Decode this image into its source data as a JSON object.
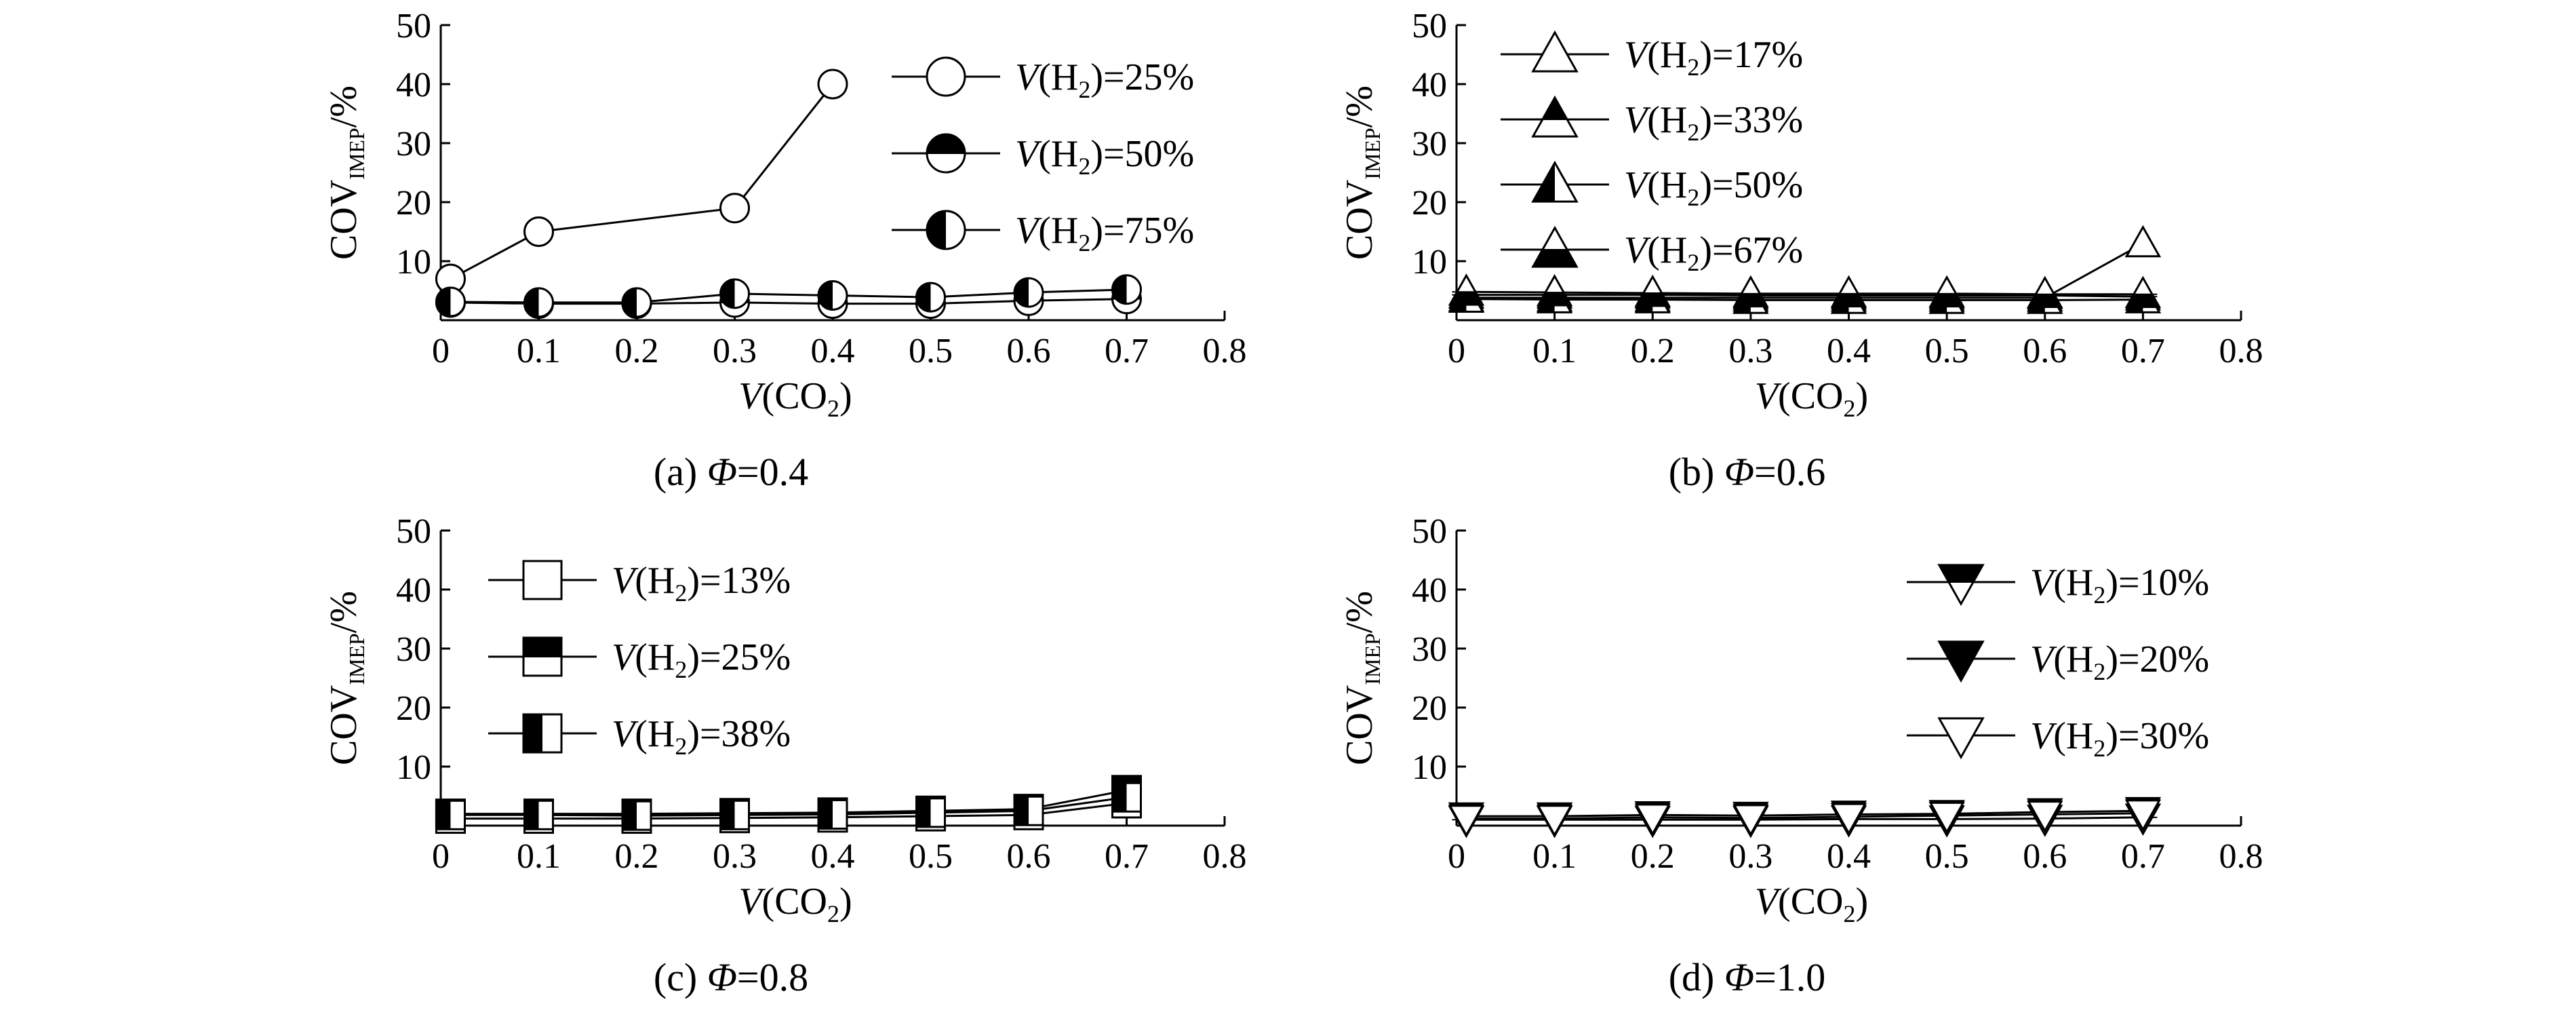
{
  "chart_data": [
    {
      "type": "line",
      "caption_prefix": "(a) ",
      "caption_symbol": "Φ",
      "caption_value": "=0.4",
      "x_label_var": "V",
      "x_label_chem": "(CO",
      "x_label_sub": "2",
      "x_label_close": ")",
      "y_label_main": "COV",
      "y_label_sub": "IMEP",
      "y_label_unit": "/%",
      "xlim": [
        0,
        0.8
      ],
      "ylim": [
        0,
        50
      ],
      "x_ticks": [
        "0",
        "0.1",
        "0.2",
        "0.3",
        "0.4",
        "0.5",
        "0.6",
        "0.7",
        "0.8"
      ],
      "y_ticks": [
        "10",
        "20",
        "30",
        "40",
        "50"
      ],
      "legend_position": "top-right",
      "series": [
        {
          "label_var": "V",
          "label_open": "(H",
          "label_sub": "2",
          "label_close": ")=25%",
          "marker": "circle",
          "fill": "open",
          "x": [
            0.01,
            0.1,
            0.3,
            0.4
          ],
          "y": [
            7,
            15,
            19,
            40
          ]
        },
        {
          "label_var": "V",
          "label_open": "(H",
          "label_sub": "2",
          "label_close": ")=50%",
          "marker": "circle",
          "fill": "top",
          "x": [
            0.01,
            0.1,
            0.2,
            0.3,
            0.4,
            0.5,
            0.6,
            0.7
          ],
          "y": [
            3,
            2.8,
            2.8,
            3,
            2.8,
            2.8,
            3.3,
            3.6
          ]
        },
        {
          "label_var": "V",
          "label_open": "(H",
          "label_sub": "2",
          "label_close": ")=75%",
          "marker": "circle",
          "fill": "left",
          "x": [
            0.01,
            0.1,
            0.2,
            0.3,
            0.4,
            0.5,
            0.6,
            0.7
          ],
          "y": [
            3.1,
            3,
            3,
            4.5,
            4.2,
            3.9,
            4.7,
            5.2
          ]
        }
      ]
    },
    {
      "type": "line",
      "caption_prefix": "(b) ",
      "caption_symbol": "Φ",
      "caption_value": "=0.6",
      "x_label_var": "V",
      "x_label_chem": "(CO",
      "x_label_sub": "2",
      "x_label_close": ")",
      "y_label_main": "COV",
      "y_label_sub": "IMEP",
      "y_label_unit": "/%",
      "xlim": [
        0,
        0.8
      ],
      "ylim": [
        0,
        50
      ],
      "x_ticks": [
        "0",
        "0.1",
        "0.2",
        "0.3",
        "0.4",
        "0.5",
        "0.6",
        "0.7",
        "0.8"
      ],
      "y_ticks": [
        "10",
        "20",
        "30",
        "40",
        "50"
      ],
      "legend_position": "top-left",
      "series": [
        {
          "label_var": "V",
          "label_open": "(H",
          "label_sub": "2",
          "label_close": ")=17%",
          "marker": "triangle-up",
          "fill": "open",
          "x": [
            0.01,
            0.1,
            0.2,
            0.3,
            0.4,
            0.5,
            0.6,
            0.7
          ],
          "y": [
            3.8,
            3.8,
            3.8,
            3.8,
            3.8,
            3.8,
            3.8,
            13
          ]
        },
        {
          "label_var": "V",
          "label_open": "(H",
          "label_sub": "2",
          "label_close": ")=33%",
          "marker": "triangle-up",
          "fill": "top",
          "x": [
            0.01,
            0.1,
            0.2,
            0.3,
            0.4,
            0.5,
            0.6,
            0.7
          ],
          "y": [
            4.3,
            4.3,
            4.3,
            4.2,
            4.2,
            4.2,
            4.2,
            4.0
          ]
        },
        {
          "label_var": "V",
          "label_open": "(H",
          "label_sub": "2",
          "label_close": ")=50%",
          "marker": "triangle-up",
          "fill": "left",
          "x": [
            0.01,
            0.1,
            0.2,
            0.3,
            0.4,
            0.5,
            0.6,
            0.7
          ],
          "y": [
            3.6,
            3.5,
            3.5,
            3.4,
            3.4,
            3.4,
            3.4,
            3.5
          ]
        },
        {
          "label_var": "V",
          "label_open": "(H",
          "label_sub": "2",
          "label_close": ")=67%",
          "marker": "triangle-up",
          "fill": "bottom",
          "x": [
            0.01,
            0.1,
            0.2,
            0.3,
            0.4,
            0.5,
            0.6,
            0.7
          ],
          "y": [
            4.8,
            4.7,
            4.6,
            4.5,
            4.5,
            4.5,
            4.4,
            4.4
          ]
        }
      ]
    },
    {
      "type": "line",
      "caption_prefix": "(c) ",
      "caption_symbol": "Φ",
      "caption_value": "=0.8",
      "x_label_var": "V",
      "x_label_chem": "(CO",
      "x_label_sub": "2",
      "x_label_close": ")",
      "y_label_main": "COV",
      "y_label_sub": "IMEP",
      "y_label_unit": "/%",
      "xlim": [
        0,
        0.8
      ],
      "ylim": [
        0,
        50
      ],
      "x_ticks": [
        "0",
        "0.1",
        "0.2",
        "0.3",
        "0.4",
        "0.5",
        "0.6",
        "0.7",
        "0.8"
      ],
      "y_ticks": [
        "10",
        "20",
        "30",
        "40",
        "50"
      ],
      "legend_position": "top-left",
      "series": [
        {
          "label_var": "V",
          "label_open": "(H",
          "label_sub": "2",
          "label_close": ")=13%",
          "marker": "square",
          "fill": "open",
          "x": [
            0.01,
            0.1,
            0.2,
            0.3,
            0.4,
            0.5,
            0.6,
            0.7
          ],
          "y": [
            1.2,
            1.2,
            1.2,
            1.3,
            1.4,
            1.6,
            1.8,
            3.8
          ]
        },
        {
          "label_var": "V",
          "label_open": "(H",
          "label_sub": "2",
          "label_close": ")=25%",
          "marker": "square",
          "fill": "top",
          "x": [
            0.01,
            0.1,
            0.2,
            0.3,
            0.4,
            0.5,
            0.6,
            0.7
          ],
          "y": [
            2.0,
            2.0,
            2.0,
            2.1,
            2.2,
            2.5,
            2.8,
            6.0
          ]
        },
        {
          "label_var": "V",
          "label_open": "(H",
          "label_sub": "2",
          "label_close": ")=38%",
          "marker": "square",
          "fill": "left",
          "x": [
            0.01,
            0.1,
            0.2,
            0.3,
            0.4,
            0.5,
            0.6,
            0.7
          ],
          "y": [
            1.8,
            1.8,
            1.7,
            1.8,
            1.9,
            2.2,
            2.5,
            4.8
          ]
        }
      ]
    },
    {
      "type": "line",
      "caption_prefix": "(d) ",
      "caption_symbol": "Φ",
      "caption_value": "=1.0",
      "x_label_var": "V",
      "x_label_chem": "(CO",
      "x_label_sub": "2",
      "x_label_close": ")",
      "y_label_main": "COV",
      "y_label_sub": "IMEP",
      "y_label_unit": "/%",
      "xlim": [
        0,
        0.8
      ],
      "ylim": [
        0,
        50
      ],
      "x_ticks": [
        "0",
        "0.1",
        "0.2",
        "0.3",
        "0.4",
        "0.5",
        "0.6",
        "0.7",
        "0.8"
      ],
      "y_ticks": [
        "10",
        "20",
        "30",
        "40",
        "50"
      ],
      "legend_position": "top-right",
      "series": [
        {
          "label_var": "V",
          "label_open": "(H",
          "label_sub": "2",
          "label_close": ")=10%",
          "marker": "triangle-down",
          "fill": "top",
          "x": [
            0.01,
            0.1,
            0.2,
            0.3,
            0.4,
            0.5,
            0.6,
            0.7
          ],
          "y": [
            1.0,
            1.0,
            1.0,
            1.0,
            1.1,
            1.1,
            1.2,
            1.4
          ]
        },
        {
          "label_var": "V",
          "label_open": "(H",
          "label_sub": "2",
          "label_close": ")=20%",
          "marker": "triangle-down",
          "fill": "full",
          "x": [
            0.01,
            0.1,
            0.2,
            0.3,
            0.4,
            0.5,
            0.6,
            0.7
          ],
          "y": [
            1.6,
            1.6,
            1.8,
            1.7,
            1.9,
            2.0,
            2.3,
            2.5
          ]
        },
        {
          "label_var": "V",
          "label_open": "(H",
          "label_sub": "2",
          "label_close": ")=30%",
          "marker": "triangle-down",
          "fill": "open",
          "x": [
            0.01,
            0.1,
            0.2,
            0.3,
            0.4,
            0.5,
            0.6,
            0.7
          ],
          "y": [
            1.2,
            1.2,
            1.4,
            1.3,
            1.5,
            1.7,
            1.9,
            2.1
          ]
        }
      ]
    }
  ]
}
